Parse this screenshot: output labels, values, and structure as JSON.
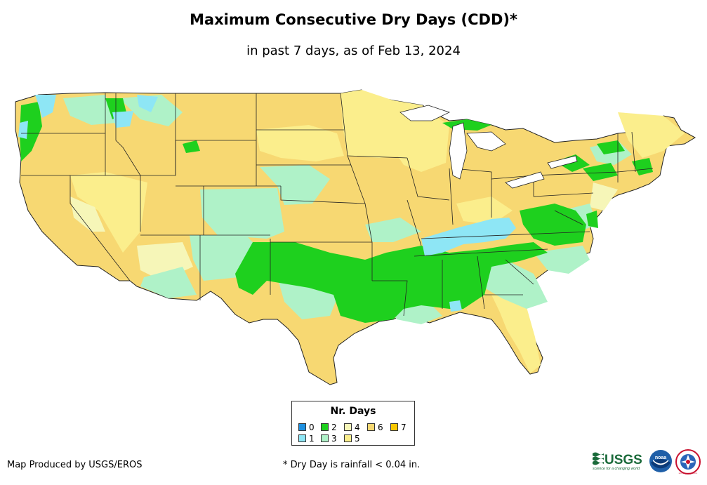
{
  "title": "Maximum Consecutive Dry Days (CDD)*",
  "subtitle": "in past 7 days, as of Feb 13, 2024",
  "legend": {
    "title": "Nr. Days",
    "items": [
      {
        "label": "0",
        "color": "#1e90e0"
      },
      {
        "label": "1",
        "color": "#8ee6f5"
      },
      {
        "label": "2",
        "color": "#1ed01e"
      },
      {
        "label": "3",
        "color": "#aff2c8"
      },
      {
        "label": "4",
        "color": "#f6f6b8"
      },
      {
        "label": "5",
        "color": "#fbee8c"
      },
      {
        "label": "6",
        "color": "#f7d872"
      },
      {
        "label": "7",
        "color": "#f9c800"
      }
    ]
  },
  "footer": {
    "credit": "Map Produced by USGS/EROS",
    "note": "* Dry Day is rainfall < 0.04 in."
  },
  "logos": [
    {
      "name": "usgs-logo",
      "text": "USGS",
      "tagline": "science for a changing world"
    },
    {
      "name": "noaa-logo",
      "text": "noaa"
    },
    {
      "name": "nws-logo",
      "text": "NATIONAL WEATHER SERVICE"
    }
  ]
}
